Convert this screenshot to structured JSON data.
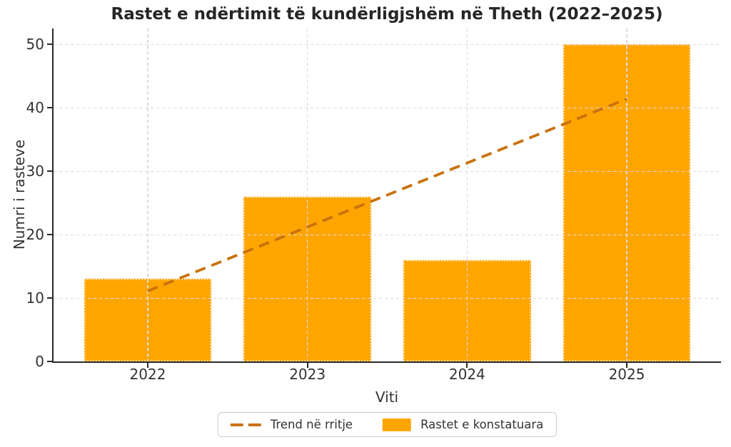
{
  "chart_data": {
    "type": "bar",
    "title": "Rastet e ndërtimit të kundërligjshëm në Theth (2022–2025)",
    "categories": [
      "2022",
      "2023",
      "2024",
      "2025"
    ],
    "series": [
      {
        "name": "Rastet e konstatuara",
        "kind": "bar",
        "values": [
          13,
          26,
          16,
          50
        ],
        "color": "#FFA500",
        "edge_color": "#FFD28C"
      },
      {
        "name": "Trend në rritje",
        "kind": "line",
        "line_style": "dashed",
        "values": [
          11.1,
          21.2,
          31.3,
          41.4
        ],
        "color": "#C9720E"
      }
    ],
    "xlabel": "Viti",
    "ylabel": "Numri i rasteve",
    "yticks": [
      0,
      10,
      20,
      30,
      40,
      50
    ],
    "ylim": [
      0,
      52.5
    ],
    "bar_width": 0.8,
    "grid": true,
    "grid_color": "#DBDBDB",
    "axis_color": "#2A2A2A",
    "text_color": "#333333",
    "legend_position": "bottom-center"
  },
  "legend": {
    "items": [
      {
        "label": "Trend në rritje",
        "swatch": "dashed-line"
      },
      {
        "label": "Rastet e konstatuara",
        "swatch": "patch"
      }
    ]
  }
}
